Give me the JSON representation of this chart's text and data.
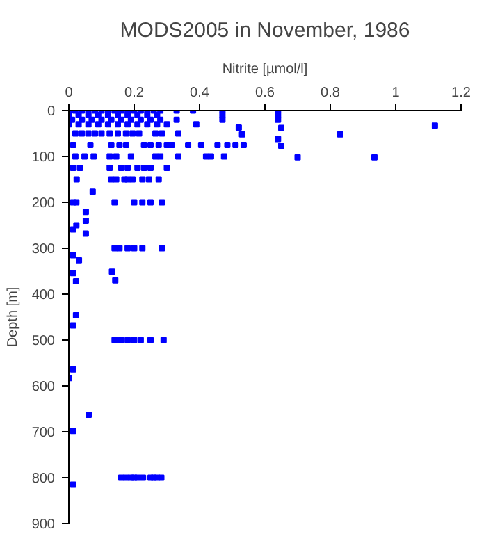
{
  "chart_data": {
    "type": "scatter",
    "title": "MODS2005 in November, 1986",
    "xlabel": "Nitrite [µmol/l]",
    "ylabel": "Depth [m]",
    "x": [
      0,
      0.02,
      0.04,
      0.06,
      0.08,
      0.1,
      0.12,
      0.14,
      0.16,
      0.18,
      0.2,
      0.22,
      0.24,
      0.26,
      0.28,
      0.33,
      0.38,
      0.47,
      0.64,
      0,
      0.03,
      0.06,
      0.09,
      0.12,
      0.15,
      0.18,
      0.21,
      0.24,
      0.27,
      0.47,
      0.64,
      0.01,
      0.04,
      0.07,
      0.1,
      0.13,
      0.16,
      0.19,
      0.22,
      0.25,
      0.28,
      0.33,
      0.47,
      0.64,
      0,
      0.03,
      0.06,
      0.09,
      0.12,
      0.15,
      0.18,
      0.21,
      0.24,
      0.27,
      0.3,
      0.39,
      0.52,
      0.65,
      1.12,
      0.02,
      0.04,
      0.06,
      0.08,
      0.1,
      0.125,
      0.15,
      0.175,
      0.195,
      0.215,
      0.265,
      0.285,
      0.335,
      0.53,
      0.83,
      0.64,
      0.013,
      0.066,
      0.13,
      0.155,
      0.175,
      0.23,
      0.25,
      0.275,
      0.3,
      0.315,
      0.365,
      0.405,
      0.455,
      0.485,
      0.51,
      0.535,
      0.65,
      0.02,
      0.048,
      0.076,
      0.125,
      0.145,
      0.19,
      0.265,
      0.28,
      0.335,
      0.42,
      0.435,
      0.475,
      0.7,
      0.935,
      0.013,
      0.034,
      0.125,
      0.16,
      0.18,
      0.21,
      0.23,
      0.25,
      0.3,
      0.024,
      0.13,
      0.145,
      0.17,
      0.18,
      0.195,
      0.225,
      0.245,
      0.275,
      0.073,
      0.013,
      0.023,
      0.14,
      0.2,
      0.225,
      0.25,
      0.285,
      0.052,
      0.052,
      0.023,
      0.013,
      0.052,
      0.14,
      0.155,
      0.18,
      0.2,
      0.225,
      0.285,
      0.013,
      0.031,
      0.013,
      0.022,
      0.132,
      0.142,
      0.022,
      0.013,
      0.14,
      0.16,
      0.18,
      0.2,
      0.22,
      0.25,
      0.29,
      0.013,
      0.001,
      0.061,
      0.013,
      0.16,
      0.175,
      0.19,
      0.2,
      0.21,
      0.227,
      0.25,
      0.26,
      0.27,
      0.283,
      0.013
    ],
    "values": [
      0,
      0,
      0,
      0,
      0,
      0,
      0,
      0,
      0,
      0,
      0,
      0,
      0,
      0,
      0,
      0,
      0,
      0,
      0,
      10,
      10,
      10,
      10,
      10,
      10,
      10,
      10,
      10,
      10,
      10,
      10,
      20,
      20,
      20,
      20,
      20,
      20,
      20,
      20,
      20,
      20,
      20,
      20,
      20,
      30,
      30,
      30,
      30,
      30,
      30,
      30,
      30,
      30,
      30,
      30,
      30,
      37,
      38,
      33,
      50,
      50,
      50,
      50,
      50,
      50,
      50,
      50,
      50,
      50,
      50,
      50,
      50,
      52,
      52,
      62,
      75,
      75,
      75,
      75,
      75,
      75,
      75,
      75,
      75,
      75,
      75,
      75,
      75,
      75,
      75,
      75,
      77,
      100,
      100,
      100,
      100,
      100,
      100,
      100,
      100,
      100,
      100,
      100,
      100,
      102,
      102,
      125,
      125,
      125,
      125,
      125,
      125,
      125,
      125,
      125,
      150,
      150,
      150,
      150,
      150,
      150,
      150,
      150,
      150,
      177,
      200,
      200,
      200,
      200,
      200,
      200,
      200,
      221,
      240,
      250,
      259,
      268,
      300,
      300,
      300,
      300,
      300,
      300,
      315,
      326,
      354,
      372,
      351,
      370,
      446,
      468,
      500,
      500,
      500,
      500,
      500,
      500,
      500,
      564,
      583,
      663,
      698,
      800,
      800,
      800,
      800,
      800,
      800,
      800,
      800,
      800,
      800,
      815
    ],
    "color": "#0000ff",
    "marker": "square",
    "xlim": [
      0,
      1.2
    ],
    "ylim": [
      900,
      0
    ],
    "xticks": [
      0,
      {
        "value": 0.2,
        "label": "0.2"
      },
      {
        "value": 0.4,
        "label": "0.4"
      },
      {
        "value": 0.6,
        "label": "0.6"
      },
      {
        "value": 0.8,
        "label": "0.8"
      },
      1,
      {
        "value": 1.2,
        "label": "1.2"
      }
    ],
    "yticks": [
      0,
      100,
      200,
      300,
      400,
      500,
      600,
      700,
      800,
      900
    ]
  }
}
